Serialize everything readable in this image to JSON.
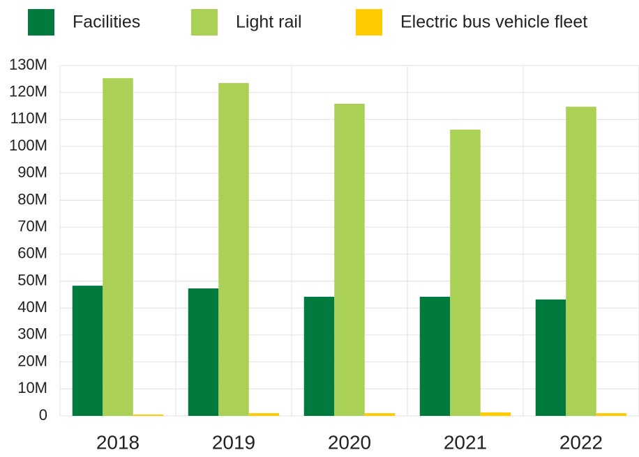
{
  "chart_data": {
    "type": "bar",
    "categories": [
      "2018",
      "2019",
      "2020",
      "2021",
      "2022"
    ],
    "series": [
      {
        "name": "Facilities",
        "color": "#007a3d",
        "values": [
          48300000,
          47300000,
          44200000,
          44200000,
          43200000
        ]
      },
      {
        "name": "Light rail",
        "color": "#aad155",
        "values": [
          125300000,
          123500000,
          115800000,
          106200000,
          114700000
        ]
      },
      {
        "name": "Electric bus vehicle fleet",
        "color": "#ffcc00",
        "values": [
          500000,
          1000000,
          1000000,
          1300000,
          1000000
        ]
      }
    ],
    "ylim": [
      0,
      130000000
    ],
    "yticks": [
      0,
      {
        "value": 10000000,
        "label": "10M"
      },
      {
        "value": 20000000,
        "label": "20M"
      },
      {
        "value": 30000000,
        "label": "30M"
      },
      {
        "value": 40000000,
        "label": "40M"
      },
      {
        "value": 50000000,
        "label": "50M"
      },
      {
        "value": 60000000,
        "label": "60M"
      },
      {
        "value": 70000000,
        "label": "70M"
      },
      {
        "value": 80000000,
        "label": "80M"
      },
      {
        "value": 90000000,
        "label": "90M"
      },
      {
        "value": 100000000,
        "label": "100M"
      },
      {
        "value": 110000000,
        "label": "110M"
      },
      {
        "value": 120000000,
        "label": "120M"
      },
      {
        "value": 130000000,
        "label": "130M"
      }
    ],
    "grid": true
  }
}
